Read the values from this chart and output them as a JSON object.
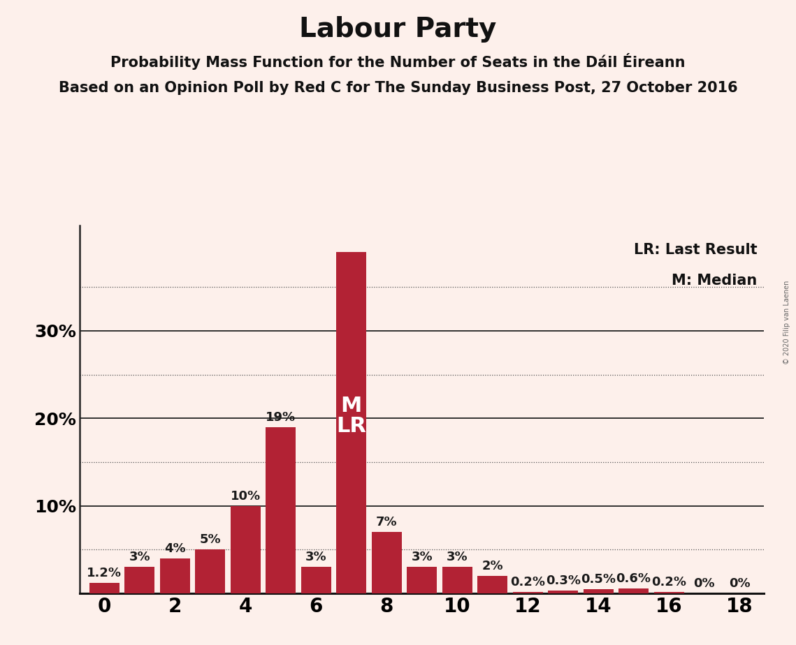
{
  "title": "Labour Party",
  "subtitle1": "Probability Mass Function for the Number of Seats in the Dáil Éireann",
  "subtitle2": "Based on an Opinion Poll by Red C for The Sunday Business Post, 27 October 2016",
  "copyright": "© 2020 Filip van Laenen",
  "seats": [
    0,
    1,
    2,
    3,
    4,
    5,
    6,
    7,
    8,
    9,
    10,
    11,
    12,
    13,
    14,
    15,
    16,
    17,
    18
  ],
  "probabilities": [
    1.2,
    3.0,
    4.0,
    5.0,
    10.0,
    19.0,
    3.0,
    39.0,
    7.0,
    3.0,
    3.0,
    2.0,
    0.2,
    0.3,
    0.5,
    0.6,
    0.2,
    0.0,
    0.0
  ],
  "bar_color": "#B22234",
  "background_color": "#FDF0EB",
  "ml_seat": 7,
  "ylim": [
    0,
    42
  ],
  "yticks": [
    0,
    10,
    20,
    30
  ],
  "ytick_labels": [
    "",
    "10%",
    "20%",
    "30%"
  ],
  "solid_grid": [
    10,
    20,
    30
  ],
  "dotted_grid": [
    5,
    15,
    25,
    35
  ],
  "xtick_positions": [
    0,
    2,
    4,
    6,
    8,
    10,
    12,
    14,
    16,
    18
  ],
  "legend_lr": "LR: Last Result",
  "legend_m": "M: Median",
  "bar_labels": [
    "1.2%",
    "3%",
    "4%",
    "5%",
    "10%",
    "19%",
    "3%",
    "",
    "7%",
    "3%",
    "3%",
    "2%",
    "0.2%",
    "0.3%",
    "0.5%",
    "0.6%",
    "0.2%",
    "0%",
    "0%"
  ],
  "title_fontsize": 28,
  "subtitle_fontsize": 15,
  "ytick_fontsize": 18,
  "xtick_fontsize": 20,
  "bar_label_fontsize": 13,
  "ml_fontsize": 22,
  "legend_fontsize": 15,
  "copyright_fontsize": 7
}
